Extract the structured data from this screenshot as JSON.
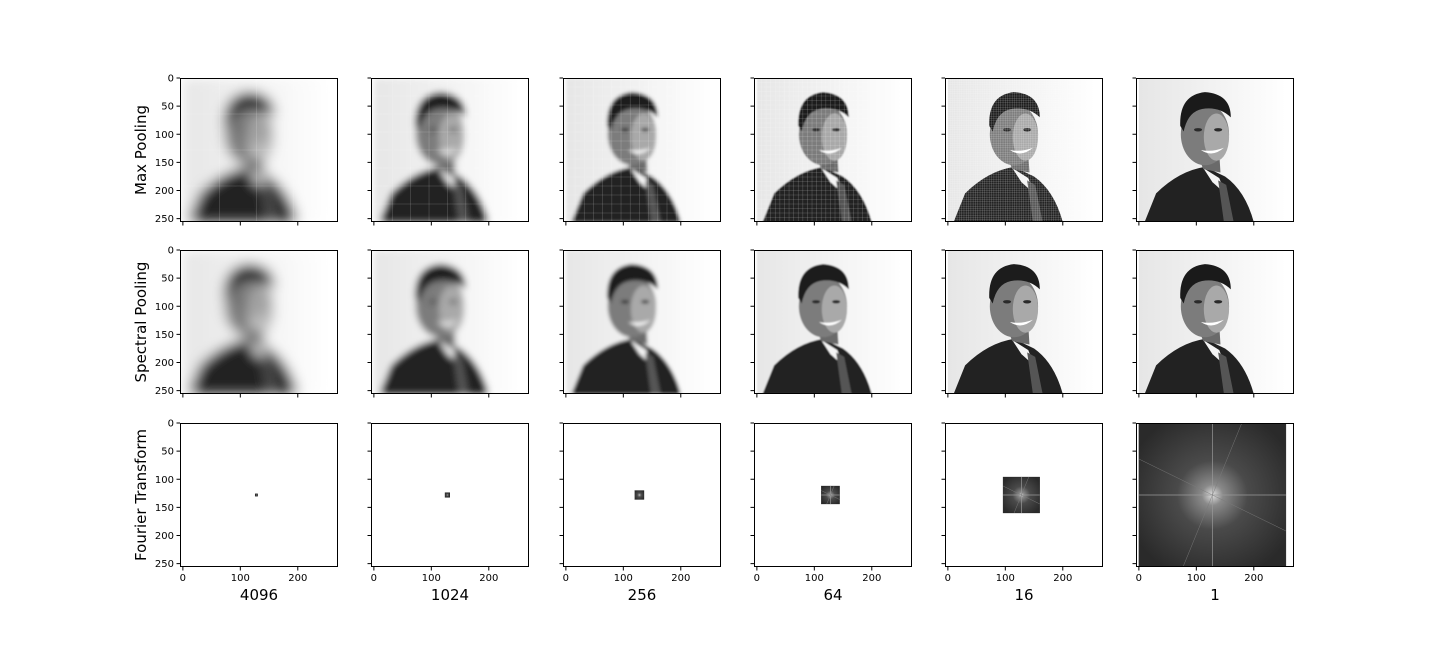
{
  "chart_data": {
    "type": "image-grid",
    "row_labels": [
      "Max Pooling",
      "Spectral Pooling",
      "Fourier Transform"
    ],
    "column_labels": [
      "4096",
      "1024",
      "256",
      "64",
      "16",
      "1"
    ],
    "compression_factors": [
      4096,
      1024,
      256,
      64,
      16,
      1
    ],
    "xlim": [
      -5,
      270
    ],
    "ylim": [
      256,
      0
    ],
    "y_ticks": [
      0,
      50,
      100,
      150,
      200,
      250
    ],
    "x_ticks": [
      0,
      100,
      200
    ],
    "image_size": 256,
    "spectral_window_sizes": [
      4,
      8,
      16,
      32,
      64,
      256
    ],
    "colormap": "gray",
    "grid": false
  }
}
